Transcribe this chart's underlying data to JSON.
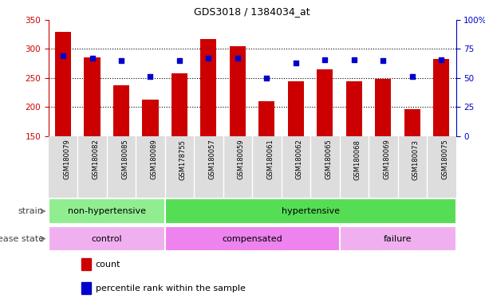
{
  "title": "GDS3018 / 1384034_at",
  "samples": [
    "GSM180079",
    "GSM180082",
    "GSM180085",
    "GSM180089",
    "GSM178755",
    "GSM180057",
    "GSM180059",
    "GSM180061",
    "GSM180062",
    "GSM180065",
    "GSM180068",
    "GSM180069",
    "GSM180073",
    "GSM180075"
  ],
  "counts": [
    329,
    286,
    238,
    213,
    258,
    317,
    305,
    210,
    245,
    265,
    245,
    248,
    197,
    283
  ],
  "percentiles": [
    69,
    67,
    65,
    51,
    65,
    67,
    67,
    50,
    63,
    66,
    66,
    65,
    51,
    66
  ],
  "ylim_left": [
    150,
    350
  ],
  "ylim_right": [
    0,
    100
  ],
  "yticks_left": [
    150,
    200,
    250,
    300,
    350
  ],
  "yticks_right": [
    0,
    25,
    50,
    75,
    100
  ],
  "yticklabels_right": [
    "0",
    "25",
    "50",
    "75",
    "100%"
  ],
  "bar_color": "#cc0000",
  "dot_color": "#0000cc",
  "strain_groups": [
    {
      "label": "non-hypertensive",
      "start": 0,
      "end": 4,
      "color": "#90ee90"
    },
    {
      "label": "hypertensive",
      "start": 4,
      "end": 14,
      "color": "#55dd55"
    }
  ],
  "disease_groups": [
    {
      "label": "control",
      "start": 0,
      "end": 4,
      "color": "#f0b0f0"
    },
    {
      "label": "compensated",
      "start": 4,
      "end": 10,
      "color": "#ee82ee"
    },
    {
      "label": "failure",
      "start": 10,
      "end": 14,
      "color": "#f0b0f0"
    }
  ],
  "legend_items": [
    {
      "label": "count",
      "color": "#cc0000"
    },
    {
      "label": "percentile rank within the sample",
      "color": "#0000cc"
    }
  ],
  "axis_label_color_left": "#cc0000",
  "axis_label_color_right": "#0000cc",
  "bar_width": 0.55,
  "background_color": "#ffffff",
  "tick_label_bg": "#dddddd",
  "n_samples": 14
}
